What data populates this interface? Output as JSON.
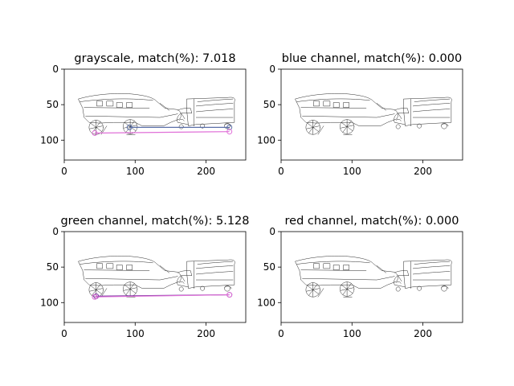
{
  "chart_data": [
    {
      "type": "image",
      "title": "grayscale, match(%): 7.018",
      "xlim": [
        0,
        256
      ],
      "ylim": [
        128,
        0
      ],
      "xticks": [
        0,
        100,
        200
      ],
      "yticks": [
        0,
        50,
        100
      ],
      "matches": [
        {
          "from": [
            92,
            82
          ],
          "to": [
            233,
            82
          ],
          "color": "#5a6fa8"
        },
        {
          "from": [
            43,
            90
          ],
          "to": [
            233,
            88
          ],
          "color": "#e070d8"
        }
      ]
    },
    {
      "type": "image",
      "title": "blue channel, match(%): 0.000",
      "xlim": [
        0,
        256
      ],
      "ylim": [
        128,
        0
      ],
      "xticks": [
        0,
        100,
        200
      ],
      "yticks": [
        0,
        50,
        100
      ],
      "matches": []
    },
    {
      "type": "image",
      "title": "green channel, match(%): 5.128",
      "xlim": [
        0,
        256
      ],
      "ylim": [
        128,
        0
      ],
      "xticks": [
        0,
        100,
        200
      ],
      "yticks": [
        0,
        50,
        100
      ],
      "matches": [
        {
          "from": [
            45,
            91
          ],
          "to": [
            233,
            89
          ],
          "color": "#7a3aa0"
        },
        {
          "from": [
            43,
            92
          ],
          "to": [
            233,
            89
          ],
          "color": "#e070d8"
        }
      ]
    },
    {
      "type": "image",
      "title": "red channel, match(%): 0.000",
      "xlim": [
        0,
        256
      ],
      "ylim": [
        128,
        0
      ],
      "xticks": [
        0,
        100,
        200
      ],
      "yticks": [
        0,
        50,
        100
      ],
      "matches": []
    }
  ]
}
